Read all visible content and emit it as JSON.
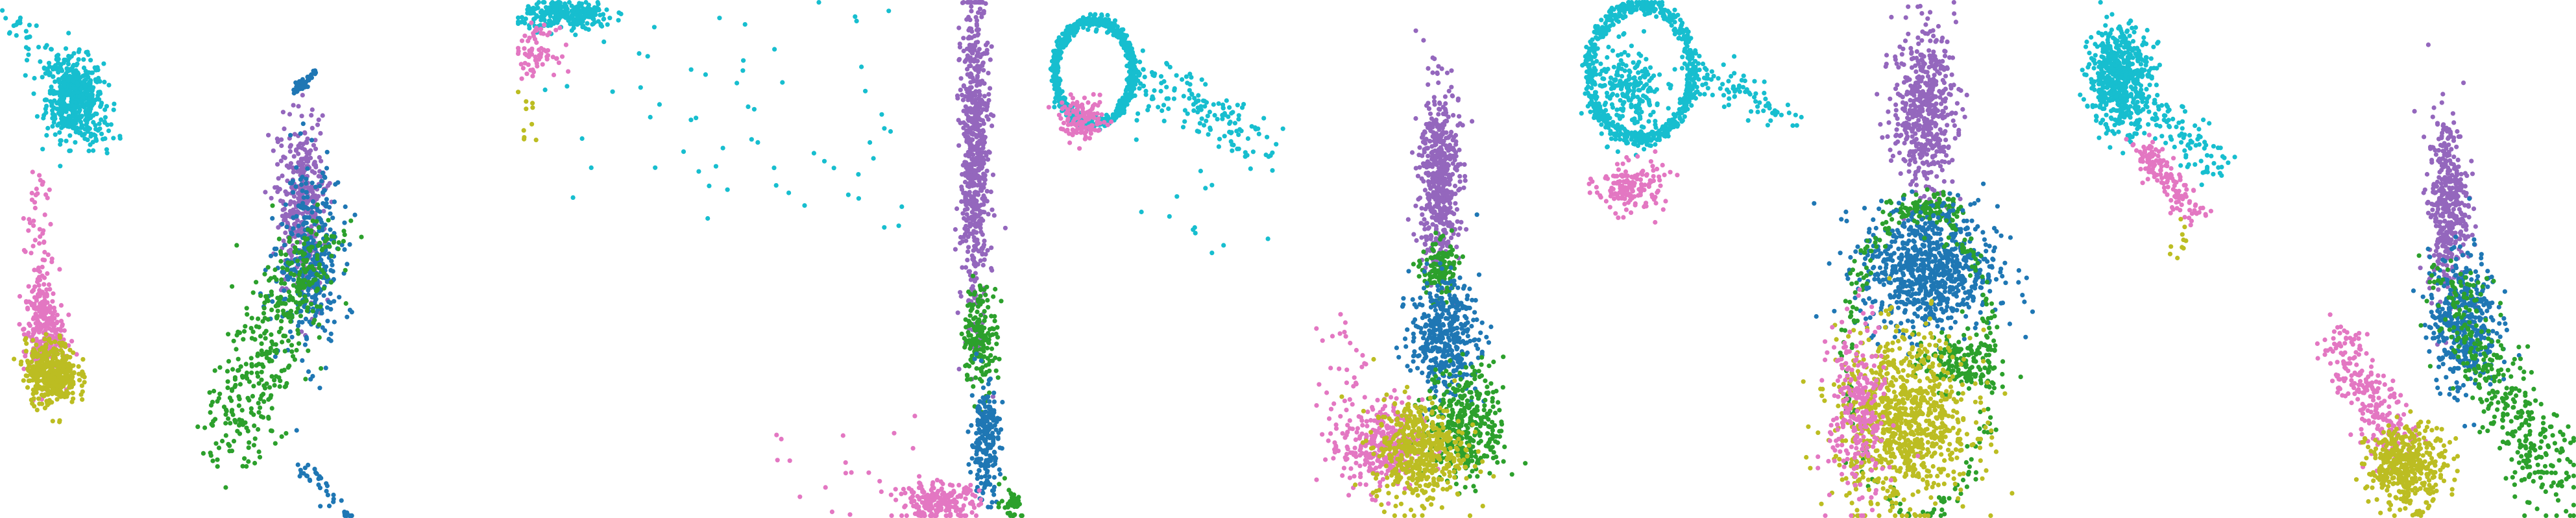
{
  "figure": {
    "colors": {
      "cyan": "#17becf",
      "purple": "#9467bd",
      "blue": "#1f77b4",
      "green": "#2ca02c",
      "pink": "#e377c2",
      "olive": "#bcbd22"
    }
  },
  "chart_data": [
    {
      "type": "scatter",
      "xlim": [
        0,
        1
      ],
      "ylim": [
        0,
        1
      ],
      "grid": false,
      "axes": "hidden",
      "clusters": [
        {
          "color": "cyan",
          "n": 480,
          "shape": "blob",
          "cx": 0.145,
          "cy": 0.81,
          "rx": 0.05,
          "ry": 0.07
        },
        {
          "color": "cyan",
          "n": 110,
          "shape": "line",
          "x0": 0.03,
          "y0": 0.96,
          "x1": 0.2,
          "y1": 0.73,
          "w": 0.018
        },
        {
          "color": "purple",
          "n": 380,
          "shape": "blob",
          "cx": 0.585,
          "cy": 0.6,
          "rx": 0.045,
          "ry": 0.15
        },
        {
          "color": "blue",
          "n": 340,
          "shape": "blob",
          "cx": 0.6,
          "cy": 0.5,
          "rx": 0.055,
          "ry": 0.16
        },
        {
          "color": "blue",
          "n": 50,
          "shape": "line",
          "x0": 0.57,
          "y0": 0.82,
          "x1": 0.61,
          "y1": 0.86,
          "w": 0.004
        },
        {
          "color": "green",
          "n": 420,
          "shape": "line",
          "x0": 0.62,
          "y0": 0.55,
          "x1": 0.44,
          "y1": 0.14,
          "w": 0.035
        },
        {
          "color": "blue",
          "n": 40,
          "shape": "line",
          "x0": 0.58,
          "y0": 0.1,
          "x1": 0.68,
          "y1": 0.0,
          "w": 0.01
        },
        {
          "color": "pink",
          "n": 260,
          "shape": "blob",
          "cx": 0.085,
          "cy": 0.36,
          "rx": 0.035,
          "ry": 0.08
        },
        {
          "color": "pink",
          "n": 60,
          "shape": "line",
          "x0": 0.075,
          "y0": 0.65,
          "x1": 0.08,
          "y1": 0.42,
          "w": 0.012
        },
        {
          "color": "olive",
          "n": 420,
          "shape": "blob",
          "cx": 0.1,
          "cy": 0.28,
          "rx": 0.045,
          "ry": 0.055
        }
      ]
    },
    {
      "type": "scatter",
      "xlim": [
        0,
        1
      ],
      "ylim": [
        0,
        1
      ],
      "grid": false,
      "axes": "hidden",
      "clusters": [
        {
          "color": "cyan",
          "n": 260,
          "shape": "blob",
          "cx": 0.1,
          "cy": 0.97,
          "rx": 0.08,
          "ry": 0.025
        },
        {
          "color": "cyan",
          "n": 60,
          "shape": "scatter",
          "x0": 0.05,
          "y0": 0.55,
          "x1": 0.75,
          "y1": 1.0
        },
        {
          "color": "pink",
          "n": 70,
          "shape": "blob",
          "cx": 0.04,
          "cy": 0.9,
          "rx": 0.035,
          "ry": 0.04
        },
        {
          "color": "olive",
          "n": 10,
          "shape": "scatter",
          "x0": 0.0,
          "y0": 0.7,
          "x1": 0.04,
          "y1": 0.85
        },
        {
          "color": "purple",
          "n": 650,
          "shape": "blob",
          "cx": 0.89,
          "cy": 0.7,
          "rx": 0.025,
          "ry": 0.28
        },
        {
          "color": "green",
          "n": 180,
          "shape": "blob",
          "cx": 0.9,
          "cy": 0.35,
          "rx": 0.03,
          "ry": 0.09
        },
        {
          "color": "blue",
          "n": 220,
          "shape": "blob",
          "cx": 0.91,
          "cy": 0.15,
          "rx": 0.025,
          "ry": 0.1
        },
        {
          "color": "pink",
          "n": 220,
          "shape": "blob",
          "cx": 0.82,
          "cy": 0.03,
          "rx": 0.07,
          "ry": 0.035
        },
        {
          "color": "pink",
          "n": 20,
          "shape": "scatter",
          "x0": 0.5,
          "y0": 0.0,
          "x1": 0.8,
          "y1": 0.2
        },
        {
          "color": "green",
          "n": 40,
          "shape": "blob",
          "cx": 0.96,
          "cy": 0.03,
          "rx": 0.02,
          "ry": 0.03
        }
      ]
    },
    {
      "type": "scatter",
      "xlim": [
        0,
        1
      ],
      "ylim": [
        0,
        1
      ],
      "grid": false,
      "axes": "hidden",
      "clusters": [
        {
          "color": "cyan",
          "n": 650,
          "shape": "ring",
          "cx": 0.12,
          "cy": 0.86,
          "rx": 0.075,
          "ry": 0.1
        },
        {
          "color": "cyan",
          "n": 140,
          "shape": "line",
          "x0": 0.2,
          "y0": 0.86,
          "x1": 0.45,
          "y1": 0.72,
          "w": 0.025
        },
        {
          "color": "cyan",
          "n": 25,
          "shape": "scatter",
          "x0": 0.2,
          "y0": 0.5,
          "x1": 0.5,
          "y1": 0.8
        },
        {
          "color": "pink",
          "n": 130,
          "shape": "blob",
          "cx": 0.1,
          "cy": 0.77,
          "rx": 0.04,
          "ry": 0.035
        },
        {
          "color": "purple",
          "n": 520,
          "shape": "blob",
          "cx": 0.79,
          "cy": 0.66,
          "rx": 0.035,
          "ry": 0.16
        },
        {
          "color": "green",
          "n": 140,
          "shape": "blob",
          "cx": 0.79,
          "cy": 0.48,
          "rx": 0.03,
          "ry": 0.05
        },
        {
          "color": "blue",
          "n": 420,
          "shape": "blob",
          "cx": 0.8,
          "cy": 0.35,
          "rx": 0.06,
          "ry": 0.1
        },
        {
          "color": "green",
          "n": 380,
          "shape": "blob",
          "cx": 0.84,
          "cy": 0.18,
          "rx": 0.07,
          "ry": 0.1
        },
        {
          "color": "pink",
          "n": 320,
          "shape": "blob",
          "cx": 0.68,
          "cy": 0.14,
          "rx": 0.07,
          "ry": 0.08
        },
        {
          "color": "olive",
          "n": 480,
          "shape": "blob",
          "cx": 0.75,
          "cy": 0.13,
          "rx": 0.08,
          "ry": 0.09
        },
        {
          "color": "pink",
          "n": 40,
          "shape": "scatter",
          "x0": 0.55,
          "y0": 0.1,
          "x1": 0.65,
          "y1": 0.4
        }
      ]
    },
    {
      "type": "scatter",
      "xlim": [
        0,
        1
      ],
      "ylim": [
        0,
        1
      ],
      "grid": false,
      "axes": "hidden",
      "clusters": [
        {
          "color": "cyan",
          "n": 620,
          "shape": "ring",
          "cx": 0.18,
          "cy": 0.86,
          "rx": 0.1,
          "ry": 0.13
        },
        {
          "color": "cyan",
          "n": 220,
          "shape": "blob",
          "cx": 0.16,
          "cy": 0.82,
          "rx": 0.06,
          "ry": 0.08
        },
        {
          "color": "cyan",
          "n": 90,
          "shape": "line",
          "x0": 0.28,
          "y0": 0.86,
          "x1": 0.47,
          "y1": 0.78,
          "w": 0.02
        },
        {
          "color": "pink",
          "n": 150,
          "shape": "blob",
          "cx": 0.16,
          "cy": 0.64,
          "rx": 0.06,
          "ry": 0.045
        },
        {
          "color": "purple",
          "n": 520,
          "shape": "blob",
          "cx": 0.73,
          "cy": 0.79,
          "rx": 0.055,
          "ry": 0.14
        },
        {
          "color": "green",
          "n": 90,
          "shape": "blob",
          "cx": 0.74,
          "cy": 0.6,
          "rx": 0.06,
          "ry": 0.025
        },
        {
          "color": "blue",
          "n": 820,
          "shape": "blob",
          "cx": 0.74,
          "cy": 0.48,
          "rx": 0.12,
          "ry": 0.11
        },
        {
          "color": "green",
          "n": 220,
          "shape": "ring",
          "cx": 0.72,
          "cy": 0.3,
          "rx": 0.14,
          "ry": 0.29
        },
        {
          "color": "green",
          "n": 160,
          "shape": "blob",
          "cx": 0.79,
          "cy": 0.3,
          "rx": 0.07,
          "ry": 0.05
        },
        {
          "color": "olive",
          "n": 900,
          "shape": "blob",
          "cx": 0.69,
          "cy": 0.19,
          "rx": 0.12,
          "ry": 0.15
        },
        {
          "color": "pink",
          "n": 260,
          "shape": "blob",
          "cx": 0.6,
          "cy": 0.2,
          "rx": 0.05,
          "ry": 0.16
        }
      ]
    },
    {
      "type": "scatter",
      "xlim": [
        0,
        1
      ],
      "ylim": [
        0,
        1
      ],
      "grid": false,
      "axes": "hidden",
      "clusters": [
        {
          "color": "cyan",
          "n": 560,
          "shape": "blob",
          "cx": 0.11,
          "cy": 0.85,
          "rx": 0.055,
          "ry": 0.09
        },
        {
          "color": "cyan",
          "n": 100,
          "shape": "line",
          "x0": 0.16,
          "y0": 0.8,
          "x1": 0.3,
          "y1": 0.67,
          "w": 0.02
        },
        {
          "color": "pink",
          "n": 150,
          "shape": "line",
          "x0": 0.15,
          "y0": 0.72,
          "x1": 0.26,
          "y1": 0.58,
          "w": 0.015
        },
        {
          "color": "olive",
          "n": 10,
          "shape": "scatter",
          "x0": 0.2,
          "y0": 0.5,
          "x1": 0.24,
          "y1": 0.58
        },
        {
          "color": "purple",
          "n": 420,
          "shape": "blob",
          "cx": 0.75,
          "cy": 0.6,
          "rx": 0.035,
          "ry": 0.16
        },
        {
          "color": "blue",
          "n": 420,
          "shape": "blob",
          "cx": 0.78,
          "cy": 0.38,
          "rx": 0.06,
          "ry": 0.12
        },
        {
          "color": "green",
          "n": 380,
          "shape": "line",
          "x0": 0.75,
          "y0": 0.45,
          "x1": 0.96,
          "y1": 0.05,
          "w": 0.035
        },
        {
          "color": "pink",
          "n": 240,
          "shape": "line",
          "x0": 0.53,
          "y0": 0.35,
          "x1": 0.66,
          "y1": 0.12,
          "w": 0.025
        },
        {
          "color": "olive",
          "n": 420,
          "shape": "blob",
          "cx": 0.67,
          "cy": 0.1,
          "rx": 0.07,
          "ry": 0.07
        }
      ]
    }
  ]
}
